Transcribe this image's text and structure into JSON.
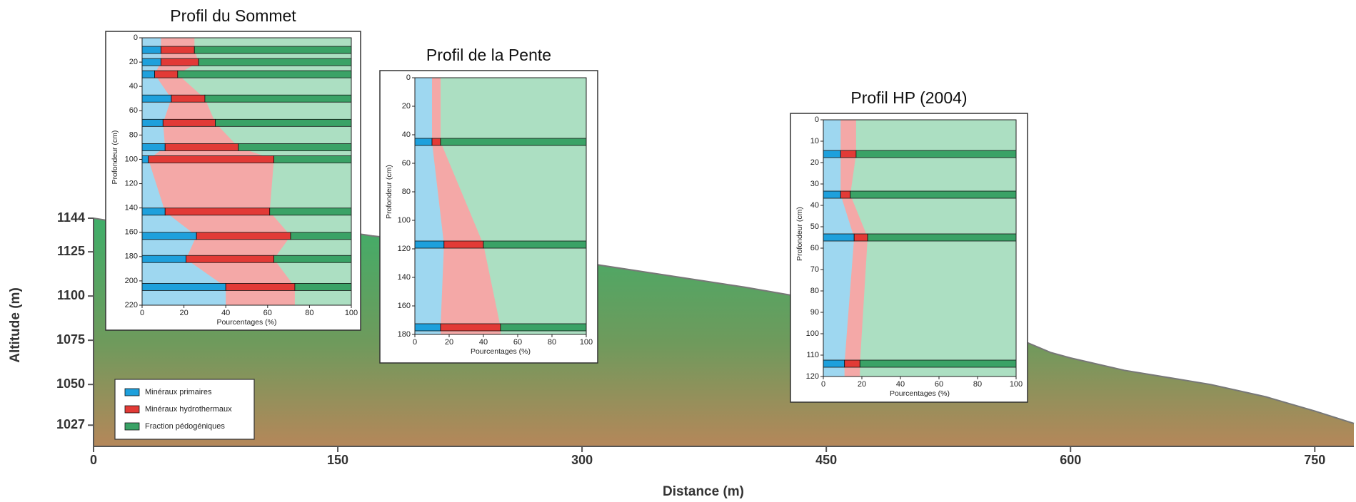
{
  "chart_data": [
    {
      "type": "area",
      "xlabel": "Distance (m)",
      "ylabel": "Altitude (m)",
      "x": [
        0,
        20,
        60,
        100,
        150,
        171,
        220,
        260,
        300,
        350,
        400,
        450,
        500,
        540,
        570,
        588,
        600,
        633,
        686,
        720,
        750,
        774
      ],
      "y": [
        1144,
        1141,
        1139,
        1138,
        1137,
        1134,
        1129,
        1124,
        1119,
        1112,
        1105,
        1097,
        1090,
        1082,
        1075,
        1068,
        1065,
        1058,
        1050,
        1043,
        1035,
        1028
      ],
      "xlim": [
        0,
        774
      ],
      "ylim": [
        1015,
        1144
      ],
      "xticks": [
        0,
        150,
        300,
        450,
        600,
        750
      ],
      "yticks": [
        1027,
        1050,
        1075,
        1100,
        1125,
        1144
      ]
    },
    {
      "type": "stacked-profile",
      "title": "Profil du Sommet",
      "xlabel": "Pourcentages (%)",
      "ylabel": "Profondeur (cm)",
      "y": [
        10,
        20,
        30,
        50,
        70,
        90,
        100,
        143,
        163,
        182,
        205
      ],
      "ylim": [
        0,
        220
      ],
      "yticks": [
        0,
        20,
        40,
        60,
        80,
        100,
        120,
        140,
        160,
        180,
        200,
        220
      ],
      "xlim": [
        0,
        100
      ],
      "xticks": [
        0,
        20,
        40,
        60,
        80,
        100
      ],
      "series": [
        {
          "name": "Minéraux primaires",
          "color": "#1ea0dc",
          "values": [
            9,
            9,
            6,
            14,
            10,
            11,
            3,
            11,
            26,
            21,
            40
          ]
        },
        {
          "name": "Minéraux hydrothermaux",
          "color": "#e23a36",
          "values": [
            16,
            18,
            11,
            16,
            25,
            35,
            60,
            50,
            45,
            42,
            33
          ]
        },
        {
          "name": "Fraction pédogéniques",
          "color": "#3aa266",
          "values": [
            75,
            73,
            83,
            70,
            65,
            54,
            37,
            39,
            29,
            37,
            27
          ]
        }
      ]
    },
    {
      "type": "stacked-profile",
      "title": "Profil de la Pente",
      "xlabel": "Pourcentages (%)",
      "ylabel": "Profondeur (cm)",
      "y": [
        45,
        117,
        175
      ],
      "ylim": [
        0,
        180
      ],
      "yticks": [
        0,
        20,
        40,
        60,
        80,
        100,
        120,
        140,
        160,
        180
      ],
      "xlim": [
        0,
        100
      ],
      "xticks": [
        0,
        20,
        40,
        60,
        80,
        100
      ],
      "series": [
        {
          "color": "#1ea0dc",
          "values": [
            10,
            17,
            15
          ]
        },
        {
          "color": "#e23a36",
          "values": [
            5,
            23,
            35
          ]
        },
        {
          "color": "#3aa266",
          "values": [
            85,
            60,
            50
          ]
        }
      ]
    },
    {
      "type": "stacked-profile",
      "title": "Profil HP (2004)",
      "xlabel": "Pourcentages (%)",
      "ylabel": "Profondeur (cm)",
      "y": [
        16,
        35,
        55,
        114
      ],
      "ylim": [
        0,
        120
      ],
      "yticks": [
        0,
        10,
        20,
        30,
        40,
        50,
        60,
        70,
        80,
        90,
        100,
        110,
        120
      ],
      "xlim": [
        0,
        100
      ],
      "xticks": [
        0,
        20,
        40,
        60,
        80,
        100
      ],
      "series": [
        {
          "color": "#1ea0dc",
          "values": [
            9,
            9,
            16,
            11
          ]
        },
        {
          "color": "#e23a36",
          "values": [
            8,
            5,
            7,
            8
          ]
        },
        {
          "color": "#3aa266",
          "values": [
            83,
            86,
            77,
            81
          ]
        }
      ]
    }
  ]
}
